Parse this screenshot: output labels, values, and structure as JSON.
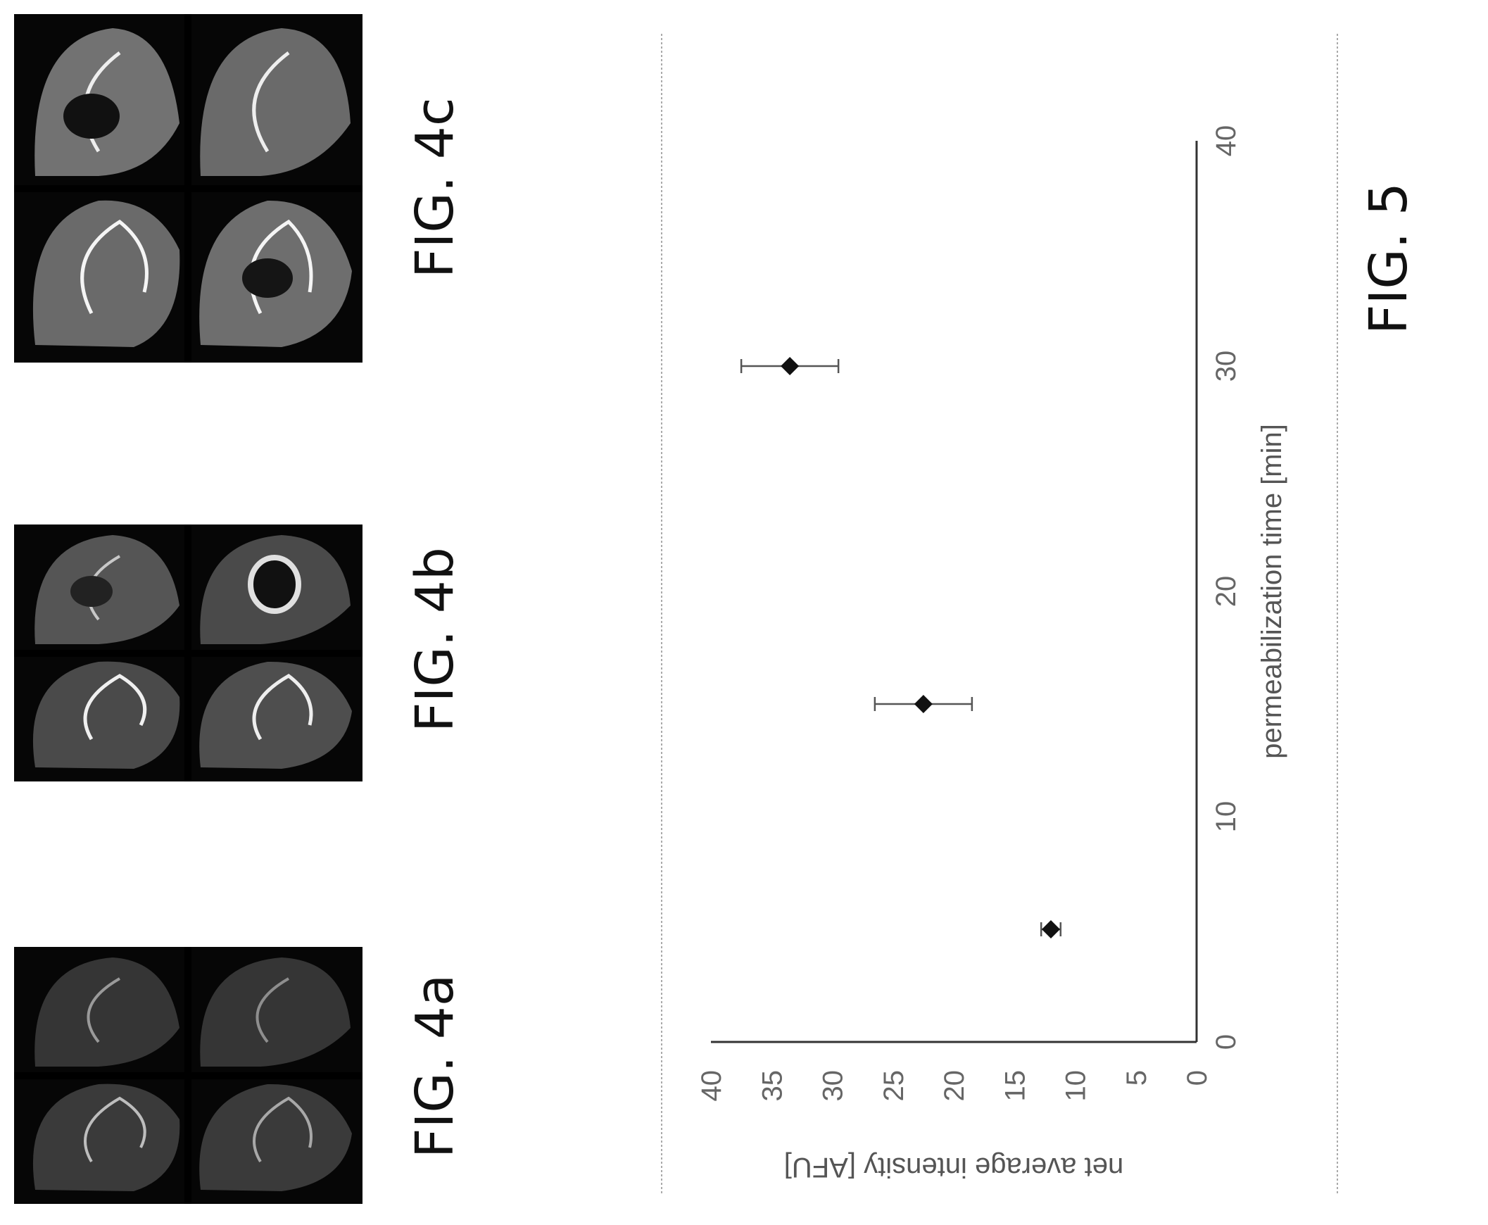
{
  "figures": {
    "fig4a": {
      "label": "FIG. 4a"
    },
    "fig4b": {
      "label": "FIG. 4b"
    },
    "fig4c": {
      "label": "FIG. 4c"
    },
    "fig5": {
      "label": "FIG. 5"
    }
  },
  "chart_data": {
    "type": "scatter",
    "xlabel": "permeabilization time [min]",
    "ylabel": "net average intensity [AFU]",
    "xlim": [
      0,
      40
    ],
    "ylim": [
      0,
      40
    ],
    "x_ticks": [
      "0",
      "10",
      "20",
      "30",
      "40"
    ],
    "y_ticks": [
      "0",
      "5",
      "10",
      "15",
      "20",
      "25",
      "30",
      "35",
      "40"
    ],
    "grid": false,
    "marker": "diamond",
    "points": [
      {
        "x": 5,
        "y": 12,
        "error": 0.8
      },
      {
        "x": 15,
        "y": 22.5,
        "error": 4
      },
      {
        "x": 30,
        "y": 33.5,
        "error": 4
      }
    ]
  }
}
